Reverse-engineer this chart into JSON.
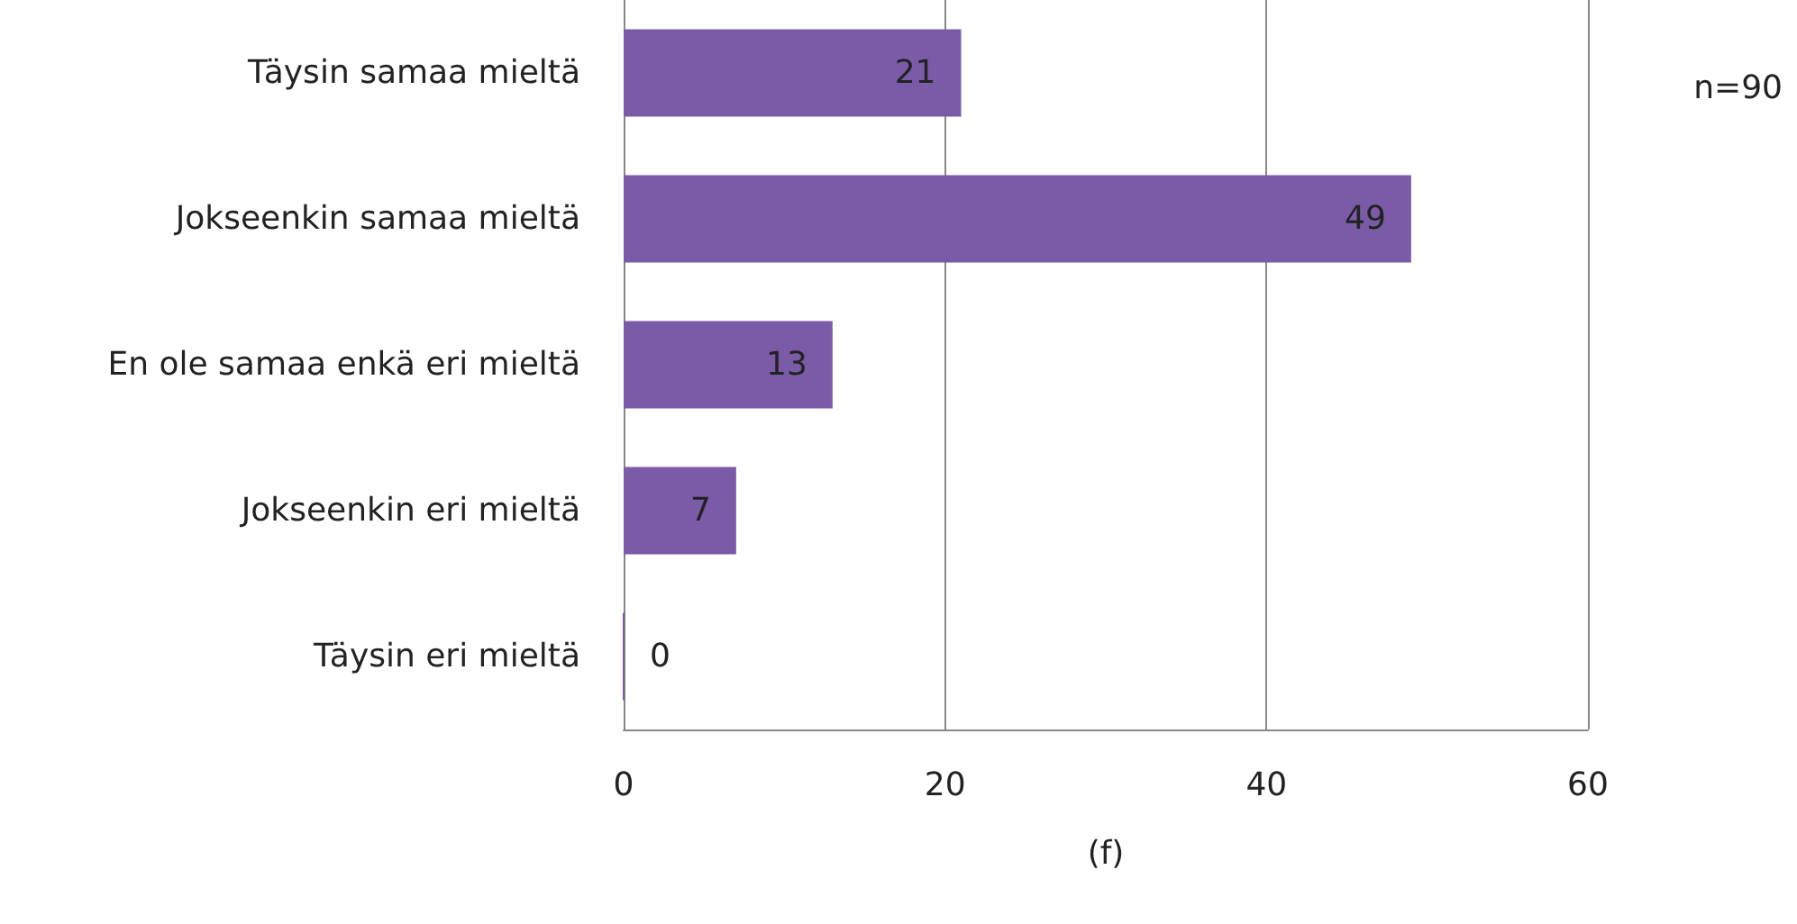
{
  "chart_data": {
    "type": "bar",
    "orientation": "horizontal",
    "xlabel": "(f)",
    "categories": [
      "Täysin samaa mieltä",
      "Jokseenkin samaa mieltä",
      "En ole samaa enkä eri mieltä",
      "Jokseenkin eri mieltä",
      "Täysin eri mieltä"
    ],
    "values": [
      21,
      49,
      13,
      7,
      0
    ],
    "color": "#7b5ba8",
    "xlim": [
      0,
      60
    ],
    "xticks": [
      0,
      20,
      40,
      60
    ],
    "grid": "x",
    "data_labels": true,
    "annotations": [
      "n=90"
    ]
  }
}
